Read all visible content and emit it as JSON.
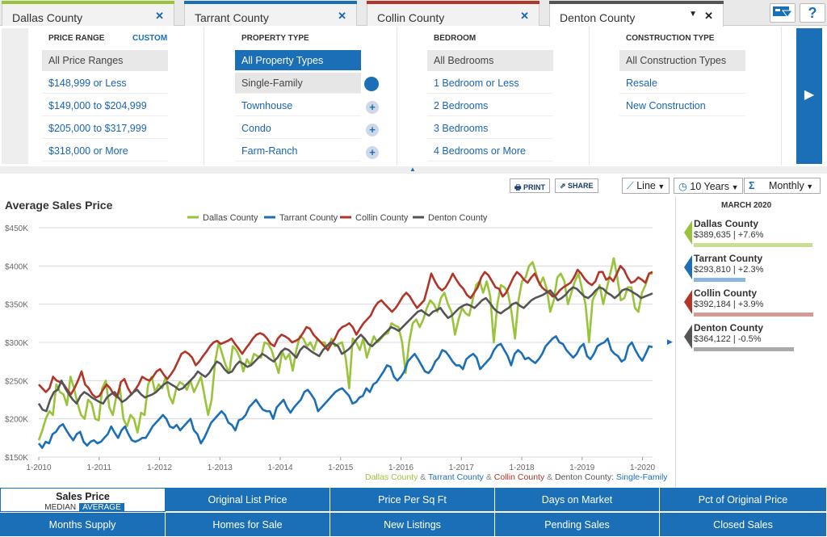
{
  "tabs": [
    {
      "label": "Dallas County",
      "color": "#9ac33c"
    },
    {
      "label": "Tarrant County",
      "color": "#1a6fb7"
    },
    {
      "label": "Collin County",
      "color": "#b2352a"
    },
    {
      "label": "Denton County",
      "color": "#555555"
    }
  ],
  "filters": {
    "price": {
      "header": "PRICE RANGE",
      "custom": "CUSTOM",
      "items": [
        "All Price Ranges",
        "$148,999 or Less",
        "$149,000 to $204,999",
        "$205,000 to $317,999",
        "$318,000 or More"
      ]
    },
    "property": {
      "header": "PROPERTY TYPE",
      "items": [
        "All Property Types",
        "Single-Family",
        "Townhouse",
        "Condo",
        "Farm-Ranch"
      ]
    },
    "bedroom": {
      "header": "BEDROOM",
      "items": [
        "All Bedrooms",
        "1 Bedroom or Less",
        "2 Bedrooms",
        "3 Bedrooms",
        "4 Bedrooms or More"
      ]
    },
    "construction": {
      "header": "CONSTRUCTION TYPE",
      "items": [
        "All Construction Types",
        "Resale",
        "New Construction"
      ]
    }
  },
  "controls": {
    "print": "PRINT",
    "share": "SHARE",
    "chart_type": "Line",
    "range": "10 Years",
    "interval": "Monthly"
  },
  "chart": {
    "title": "Average Sales Price"
  },
  "caption": {
    "dallas": "Dallas County",
    "amp1": " & ",
    "tarrant": "Tarrant County",
    "amp2": " & ",
    "collin": "Collin County",
    "amp3": " & ",
    "denton": "Denton County",
    "suffix": ": Single-Family"
  },
  "sidebar": {
    "date": "MARCH 2020",
    "items": [
      {
        "name": "Dallas County",
        "value": "$389,635 | +7.6%"
      },
      {
        "name": "Tarrant County",
        "value": "$293,810 | +2.3%"
      },
      {
        "name": "Collin County",
        "value": "$392,184 | +3.9%"
      },
      {
        "name": "Denton County",
        "value": "$364,122 | -0.5%"
      }
    ]
  },
  "bottom": {
    "row1": [
      "Sales Price",
      "Original List Price",
      "Price Per Sq Ft",
      "Days on Market",
      "Pct of Original Price"
    ],
    "row2": [
      "Months Supply",
      "Homes for Sale",
      "New Listings",
      "Pending Sales",
      "Closed Sales"
    ],
    "median": "MEDIAN",
    "average": "AVERAGE"
  },
  "chart_data": {
    "type": "line",
    "ylim": [
      150000,
      450000
    ],
    "yticks": [
      "$150K",
      "$200K",
      "$250K",
      "$300K",
      "$350K",
      "$400K",
      "$450K"
    ],
    "xticks": [
      "1-2010",
      "1-2011",
      "1-2012",
      "1-2013",
      "1-2014",
      "1-2015",
      "1-2016",
      "1-2017",
      "1-2018",
      "1-2019",
      "1-2020"
    ],
    "legend_position": "top",
    "series": [
      {
        "name": "Dallas County",
        "color": "#9ac33c",
        "values": [
          172000,
          185000,
          200000,
          210000,
          205000,
          245000,
          235000,
          232000,
          218000,
          255000,
          240000,
          220000,
          205000,
          200000,
          225000,
          220000,
          200000,
          198000,
          240000,
          250000,
          215000,
          205000,
          230000,
          240000,
          200000,
          190000,
          205000,
          200000,
          182000,
          208000,
          205000,
          245000,
          255000,
          235000,
          245000,
          240000,
          255000,
          230000,
          220000,
          240000,
          248000,
          245000,
          238000,
          250000,
          235000,
          245000,
          255000,
          230000,
          205000,
          225000,
          275000,
          300000,
          285000,
          270000,
          260000,
          295000,
          290000,
          280000,
          262000,
          278000,
          270000,
          285000,
          282000,
          280000,
          300000,
          298000,
          290000,
          275000,
          260000,
          288000,
          278000,
          285000,
          263000,
          290000,
          308000,
          305000,
          295000,
          300000,
          290000,
          305000,
          300000,
          300000,
          290000,
          305000,
          295000,
          298000,
          300000,
          280000,
          240000,
          305000,
          300000,
          290000,
          305000,
          280000,
          295000,
          308000,
          300000,
          305000,
          310000,
          312000,
          325000,
          322000,
          320000,
          300000,
          260000,
          300000,
          325000,
          330000,
          320000,
          330000,
          345000,
          355000,
          350000,
          340000,
          358000,
          365000,
          350000,
          340000,
          310000,
          330000,
          345000,
          338000,
          335000,
          355000,
          375000,
          380000,
          365000,
          380000,
          360000,
          300000,
          350000,
          375000,
          372000,
          365000,
          340000,
          305000,
          355000,
          380000,
          385000,
          400000,
          405000,
          390000,
          375000,
          385000,
          370000,
          340000,
          355000,
          385000,
          390000,
          380000,
          350000,
          365000,
          380000,
          390000,
          370000,
          350000,
          300000,
          355000,
          365000,
          375000,
          350000,
          370000,
          390000,
          410000,
          385000,
          355000,
          358000,
          372000,
          372000,
          345000,
          340000,
          365000,
          375000,
          390000,
          389635
        ]
      },
      {
        "name": "Tarrant County",
        "color": "#1a6fb7",
        "values": [
          168000,
          162000,
          170000,
          168000,
          180000,
          183000,
          190000,
          193000,
          185000,
          178000,
          172000,
          180000,
          183000,
          170000,
          165000,
          170000,
          172000,
          168000,
          170000,
          175000,
          180000,
          190000,
          182000,
          175000,
          185000,
          190000,
          180000,
          172000,
          170000,
          172000,
          175000,
          175000,
          182000,
          190000,
          195000,
          200000,
          205000,
          200000,
          190000,
          188000,
          192000,
          185000,
          190000,
          195000,
          200000,
          185000,
          180000,
          168000,
          175000,
          185000,
          195000,
          200000,
          205000,
          210000,
          205000,
          195000,
          192000,
          185000,
          198000,
          200000,
          205000,
          215000,
          220000,
          225000,
          218000,
          212000,
          210000,
          210000,
          200000,
          215000,
          220000,
          225000,
          215000,
          208000,
          215000,
          220000,
          225000,
          235000,
          238000,
          232000,
          225000,
          210000,
          215000,
          220000,
          225000,
          230000,
          235000,
          238000,
          240000,
          235000,
          230000,
          220000,
          222000,
          228000,
          230000,
          240000,
          235000,
          245000,
          248000,
          255000,
          262000,
          270000,
          268000,
          255000,
          250000,
          255000,
          262000,
          275000,
          280000,
          285000,
          278000,
          270000,
          262000,
          260000,
          265000,
          275000,
          280000,
          290000,
          288000,
          282000,
          275000,
          270000,
          270000,
          265000,
          278000,
          282000,
          285000,
          280000,
          265000,
          270000,
          275000,
          280000,
          290000,
          296000,
          298000,
          290000,
          282000,
          270000,
          285000,
          290000,
          286000,
          278000,
          280000,
          276000,
          273000,
          278000,
          285000,
          295000,
          300000,
          305000,
          308000,
          300000,
          298000,
          290000,
          285000,
          280000,
          285000,
          293810,
          298000,
          282000,
          278000,
          285000,
          295000,
          298000,
          300000,
          305000,
          290000,
          285000,
          282000,
          275000,
          278000,
          295000,
          300000,
          290000,
          282000,
          276000,
          285000,
          295000,
          293810
        ]
      },
      {
        "name": "Collin County",
        "color": "#b2352a",
        "values": [
          245000,
          240000,
          235000,
          240000,
          255000,
          250000,
          248000,
          245000,
          238000,
          232000,
          240000,
          250000,
          262000,
          245000,
          240000,
          232000,
          228000,
          230000,
          238000,
          245000,
          240000,
          232000,
          228000,
          248000,
          252000,
          240000,
          232000,
          238000,
          245000,
          255000,
          252000,
          250000,
          255000,
          262000,
          265000,
          258000,
          252000,
          258000,
          265000,
          275000,
          285000,
          288000,
          285000,
          280000,
          270000,
          275000,
          282000,
          288000,
          295000,
          300000,
          302000,
          298000,
          300000,
          302000,
          305000,
          298000,
          292000,
          285000,
          292000,
          298000,
          305000,
          310000,
          312000,
          310000,
          305000,
          298000,
          295000,
          305000,
          310000,
          308000,
          305000,
          300000,
          302000,
          305000,
          312000,
          320000,
          318000,
          310000,
          305000,
          300000,
          295000,
          290000,
          298000,
          305000,
          315000,
          320000,
          322000,
          325000,
          320000,
          310000,
          318000,
          325000,
          330000,
          335000,
          345000,
          352000,
          355000,
          350000,
          345000,
          340000,
          345000,
          352000,
          360000,
          365000,
          360000,
          352000,
          345000,
          350000,
          355000,
          372000,
          390000,
          380000,
          372000,
          368000,
          372000,
          380000,
          390000,
          382000,
          375000,
          370000,
          362000,
          358000,
          365000,
          372000,
          385000,
          392000,
          388000,
          380000,
          372000,
          370000,
          360000,
          365000,
          375000,
          385000,
          392000,
          388000,
          382000,
          378000,
          385000,
          390000,
          380000,
          372000,
          368000,
          365000,
          360000,
          362000,
          368000,
          372000,
          375000,
          378000,
          385000,
          395000,
          390000,
          383000,
          378000,
          375000,
          380000,
          392000,
          392184,
          382000,
          385000,
          380000,
          390000,
          400000,
          395000,
          385000,
          378000,
          380000,
          385000,
          382000,
          378000,
          390000,
          392184
        ]
      },
      {
        "name": "Denton County",
        "color": "#555555",
        "values": [
          220000,
          212000,
          210000,
          225000,
          235000,
          238000,
          250000,
          240000,
          232000,
          225000,
          220000,
          230000,
          235000,
          232000,
          228000,
          225000,
          222000,
          220000,
          228000,
          232000,
          235000,
          228000,
          222000,
          225000,
          230000,
          235000,
          238000,
          232000,
          228000,
          230000,
          232000,
          235000,
          240000,
          245000,
          248000,
          245000,
          242000,
          238000,
          240000,
          245000,
          250000,
          255000,
          262000,
          258000,
          255000,
          260000,
          268000,
          275000,
          272000,
          265000,
          260000,
          262000,
          270000,
          275000,
          272000,
          268000,
          270000,
          275000,
          280000,
          285000,
          282000,
          278000,
          275000,
          280000,
          288000,
          292000,
          290000,
          285000,
          280000,
          290000,
          295000,
          292000,
          288000,
          285000,
          282000,
          290000,
          295000,
          300000,
          298000,
          295000,
          285000,
          288000,
          292000,
          298000,
          305000,
          310000,
          305000,
          298000,
          295000,
          300000,
          305000,
          310000,
          315000,
          320000,
          318000,
          315000,
          320000,
          325000,
          330000,
          335000,
          340000,
          342000,
          338000,
          335000,
          340000,
          342000,
          345000,
          338000,
          332000,
          335000,
          340000,
          345000,
          348000,
          350000,
          348000,
          345000,
          350000,
          355000,
          358000,
          352000,
          345000,
          340000,
          338000,
          342000,
          345000,
          350000,
          352000,
          348000,
          345000,
          350000,
          355000,
          358000,
          360000,
          362000,
          365000,
          368000,
          362000,
          355000,
          358000,
          362000,
          368000,
          372000,
          370000,
          365000,
          360000,
          358000,
          362000,
          368000,
          372000,
          370000,
          365000,
          362000,
          358000,
          362000,
          368000,
          370000,
          368000,
          365000,
          362000,
          358000,
          360000,
          362000,
          364122
        ]
      }
    ]
  }
}
